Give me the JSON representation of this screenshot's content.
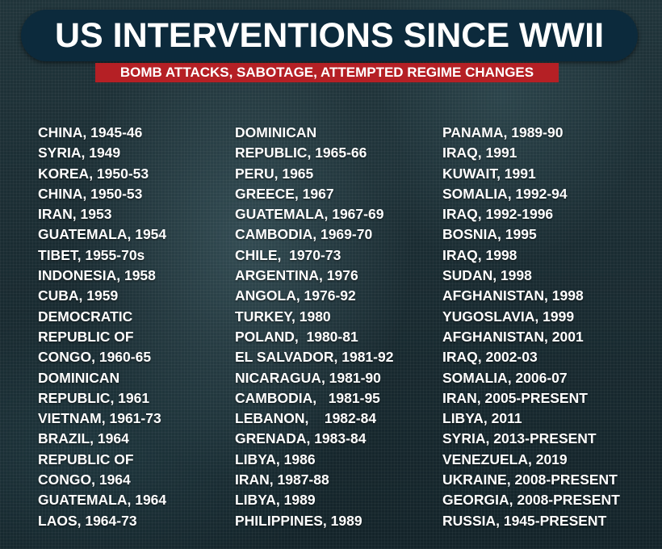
{
  "title": "US INTERVENTIONS SINCE WWII",
  "subtitle": "BOMB ATTACKS, SABOTAGE, ATTEMPTED REGIME CHANGES",
  "columns": [
    [
      "CHINA, 1945-46",
      "SYRIA, 1949",
      "KOREA, 1950-53",
      "CHINA, 1950-53",
      "IRAN, 1953",
      "GUATEMALA, 1954",
      "TIBET, 1955-70s",
      "INDONESIA, 1958",
      "CUBA, 1959",
      "DEMOCRATIC",
      "REPUBLIC OF",
      "CONGO, 1960-65",
      "DOMINICAN",
      "REPUBLIC, 1961",
      "VIETNAM, 1961-73",
      "BRAZIL, 1964",
      "REPUBLIC OF",
      "CONGO, 1964",
      "GUATEMALA, 1964",
      "LAOS, 1964-73"
    ],
    [
      "DOMINICAN",
      "REPUBLIC, 1965-66",
      "PERU, 1965",
      "GREECE, 1967",
      "GUATEMALA, 1967-69",
      "CAMBODIA, 1969-70",
      "CHILE,  1970-73",
      "ARGENTINA, 1976",
      "ANGOLA, 1976-92",
      "TURKEY, 1980",
      "POLAND,  1980-81",
      "EL SALVADOR, 1981-92",
      "NICARAGUA, 1981-90",
      "CAMBODIA,   1981-95",
      "LEBANON,    1982-84",
      "GRENADA, 1983-84",
      "LIBYA, 1986",
      "IRAN, 1987-88",
      "LIBYA, 1989",
      "PHILIPPINES, 1989"
    ],
    [
      "PANAMA, 1989-90",
      "IRAQ, 1991",
      "KUWAIT, 1991",
      "SOMALIA, 1992-94",
      "IRAQ, 1992-1996",
      "BOSNIA, 1995",
      "IRAQ, 1998",
      "SUDAN, 1998",
      "AFGHANISTAN, 1998",
      "YUGOSLAVIA, 1999",
      "AFGHANISTAN, 2001",
      "IRAQ, 2002-03",
      "SOMALIA, 2006-07",
      "IRAN, 2005-PRESENT",
      "LIBYA, 2011",
      "SYRIA, 2013-PRESENT",
      "VENEZUELA, 2019",
      "UKRAINE, 2008-PRESENT",
      "GEORGIA, 2008-PRESENT",
      "RUSSIA, 1945-PRESENT"
    ]
  ],
  "colors": {
    "title_bg": "#0c2a3c",
    "subtitle_bg": "#b52025",
    "text": "#ffffff"
  }
}
